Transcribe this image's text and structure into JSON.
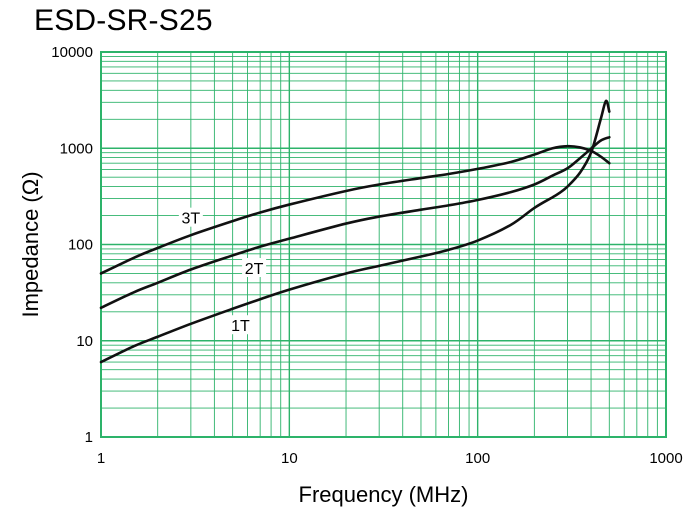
{
  "chart_data": {
    "type": "line",
    "title": "ESD-SR-S25",
    "xlabel": "Frequency (MHz)",
    "ylabel": "Impedance (Ω)",
    "x_scale": "log",
    "y_scale": "log",
    "xlim": [
      1,
      1000
    ],
    "ylim": [
      1,
      10000
    ],
    "x_ticks": [
      "1",
      "10",
      "100",
      "1000"
    ],
    "y_ticks": [
      "1",
      "10",
      "100",
      "1000",
      "10000"
    ],
    "grid": true,
    "colors": {
      "grid": "#2db36a",
      "frame": "#2db36a",
      "curve": "#111111"
    },
    "series": [
      {
        "name": "3T",
        "x": [
          1,
          1.5,
          2,
          3,
          5,
          7,
          10,
          20,
          30,
          50,
          70,
          100,
          150,
          200,
          250,
          300,
          350,
          400,
          450,
          500
        ],
        "y": [
          50,
          73,
          92,
          125,
          175,
          215,
          260,
          360,
          420,
          490,
          540,
          610,
          720,
          860,
          1000,
          1050,
          1020,
          940,
          820,
          700
        ]
      },
      {
        "name": "2T",
        "x": [
          1,
          1.5,
          2,
          3,
          5,
          7,
          10,
          20,
          30,
          50,
          70,
          100,
          150,
          200,
          250,
          300,
          350,
          400,
          450,
          500
        ],
        "y": [
          22,
          32,
          40,
          55,
          77,
          95,
          115,
          165,
          195,
          230,
          255,
          290,
          350,
          420,
          520,
          620,
          790,
          990,
          1200,
          1300
        ]
      },
      {
        "name": "1T",
        "x": [
          1,
          1.5,
          2,
          3,
          5,
          7,
          10,
          20,
          30,
          50,
          70,
          100,
          150,
          200,
          250,
          270,
          300,
          350,
          400,
          450,
          480,
          500
        ],
        "y": [
          6,
          8.8,
          11,
          15,
          21.5,
          27,
          34,
          50,
          60,
          75,
          88,
          110,
          160,
          240,
          310,
          340,
          400,
          560,
          900,
          2000,
          3100,
          2400
        ]
      }
    ],
    "annotations": [
      {
        "text": "3T",
        "x": 3,
        "y": 190
      },
      {
        "text": "2T",
        "x": 6.5,
        "y": 57
      },
      {
        "text": "1T",
        "x": 5.5,
        "y": 14.5
      }
    ]
  }
}
